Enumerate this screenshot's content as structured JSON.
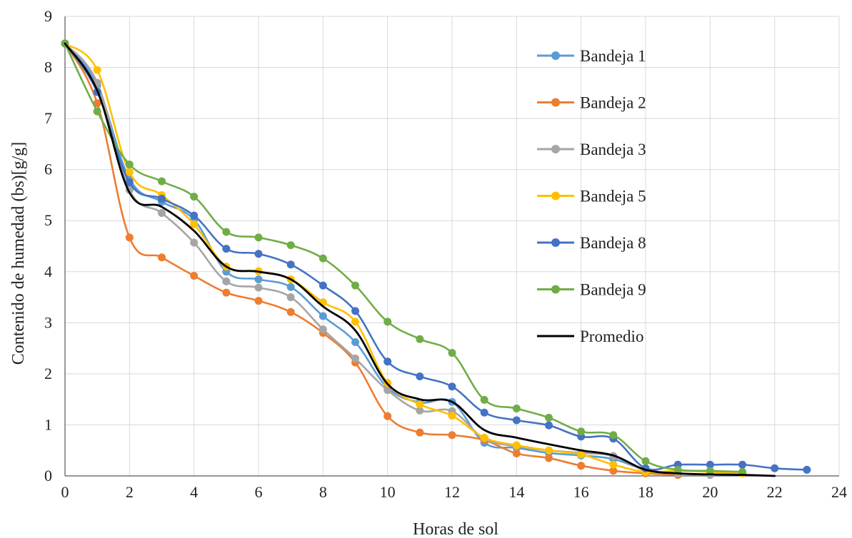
{
  "chart_data": {
    "type": "line",
    "xlabel": "Horas de sol",
    "ylabel": "Contenido  de humedad (bs)[g/g]",
    "xlim": [
      0,
      24
    ],
    "ylim": [
      0,
      9
    ],
    "xticks": [
      0,
      2,
      4,
      6,
      8,
      10,
      12,
      14,
      16,
      18,
      20,
      22,
      24
    ],
    "yticks": [
      0,
      1,
      2,
      3,
      4,
      5,
      6,
      7,
      8,
      9
    ],
    "grid": "vertical and horizontal",
    "legend_position": "right, inside plot",
    "series": [
      {
        "name": "Bandeja 1",
        "color": "#5B9BD5",
        "markers": true,
        "x": [
          0,
          1,
          2,
          3,
          4,
          5,
          6,
          7,
          8,
          9,
          10,
          11,
          12,
          13,
          14,
          15,
          16,
          17,
          18,
          19
        ],
        "y": [
          8.47,
          7.65,
          5.82,
          5.37,
          5.02,
          4.0,
          3.85,
          3.7,
          3.13,
          2.62,
          1.73,
          1.44,
          1.45,
          0.65,
          0.55,
          0.45,
          0.4,
          0.33,
          0.12,
          0.05
        ]
      },
      {
        "name": "Bandeja 2",
        "color": "#ED7D31",
        "markers": true,
        "x": [
          0,
          1,
          2,
          3,
          4,
          5,
          6,
          7,
          8,
          9,
          10,
          11,
          12,
          13,
          14,
          15,
          16,
          17,
          18,
          19
        ],
        "y": [
          8.47,
          7.3,
          4.67,
          4.28,
          3.92,
          3.59,
          3.43,
          3.21,
          2.8,
          2.22,
          1.17,
          0.85,
          0.8,
          0.7,
          0.44,
          0.35,
          0.2,
          0.1,
          0.05,
          0.02
        ]
      },
      {
        "name": "Bandeja 3",
        "color": "#A5A5A5",
        "markers": true,
        "x": [
          0,
          1,
          2,
          3,
          4,
          5,
          6,
          7,
          8,
          9,
          10,
          11,
          12,
          13,
          14,
          15,
          16,
          17,
          18,
          19,
          20
        ],
        "y": [
          8.47,
          7.7,
          5.6,
          5.15,
          4.57,
          3.81,
          3.69,
          3.5,
          2.87,
          2.3,
          1.68,
          1.28,
          1.27,
          0.73,
          0.58,
          0.5,
          0.45,
          0.39,
          0.1,
          0.05,
          0.02
        ]
      },
      {
        "name": "Bandeja 5",
        "color": "#FFC000",
        "markers": true,
        "x": [
          0,
          1,
          2,
          3,
          4,
          5,
          6,
          7,
          8,
          9,
          10,
          11,
          12,
          13,
          14,
          15,
          16,
          17,
          18,
          19,
          20,
          21
        ],
        "y": [
          8.47,
          7.95,
          5.95,
          5.5,
          4.93,
          4.1,
          4.01,
          3.85,
          3.4,
          3.02,
          1.82,
          1.4,
          1.18,
          0.75,
          0.6,
          0.5,
          0.42,
          0.22,
          0.08,
          0.1,
          0.08,
          0.05
        ]
      },
      {
        "name": "Bandeja 8",
        "color": "#4472C4",
        "markers": true,
        "x": [
          0,
          1,
          2,
          3,
          4,
          5,
          6,
          7,
          8,
          9,
          10,
          11,
          12,
          13,
          14,
          15,
          16,
          17,
          18,
          19,
          20,
          21,
          22,
          23
        ],
        "y": [
          8.47,
          7.52,
          5.75,
          5.43,
          5.1,
          4.45,
          4.35,
          4.14,
          3.73,
          3.23,
          2.24,
          1.95,
          1.75,
          1.24,
          1.09,
          0.99,
          0.77,
          0.73,
          0.15,
          0.22,
          0.22,
          0.22,
          0.15,
          0.12
        ]
      },
      {
        "name": "Bandeja 9",
        "color": "#70AD47",
        "markers": true,
        "x": [
          0,
          1,
          2,
          3,
          4,
          5,
          6,
          7,
          8,
          9,
          10,
          11,
          12,
          13,
          14,
          15,
          16,
          17,
          18,
          19,
          20,
          21
        ],
        "y": [
          8.47,
          7.14,
          6.1,
          5.77,
          5.47,
          4.78,
          4.67,
          4.52,
          4.26,
          3.73,
          3.02,
          2.68,
          2.41,
          1.49,
          1.32,
          1.14,
          0.87,
          0.8,
          0.29,
          0.12,
          0.1,
          0.08
        ]
      },
      {
        "name": "Promedio",
        "color": "#000000",
        "markers": false,
        "x": [
          0,
          1,
          2,
          3,
          4,
          5,
          6,
          7,
          8,
          9,
          10,
          11,
          12,
          13,
          14,
          15,
          16,
          17,
          18,
          19,
          20,
          21,
          22
        ],
        "y": [
          8.47,
          7.55,
          5.55,
          5.27,
          4.8,
          4.1,
          4.0,
          3.85,
          3.32,
          2.85,
          1.8,
          1.5,
          1.45,
          0.9,
          0.75,
          0.62,
          0.5,
          0.4,
          0.12,
          0.05,
          0.03,
          0.02,
          0.0
        ]
      }
    ]
  }
}
